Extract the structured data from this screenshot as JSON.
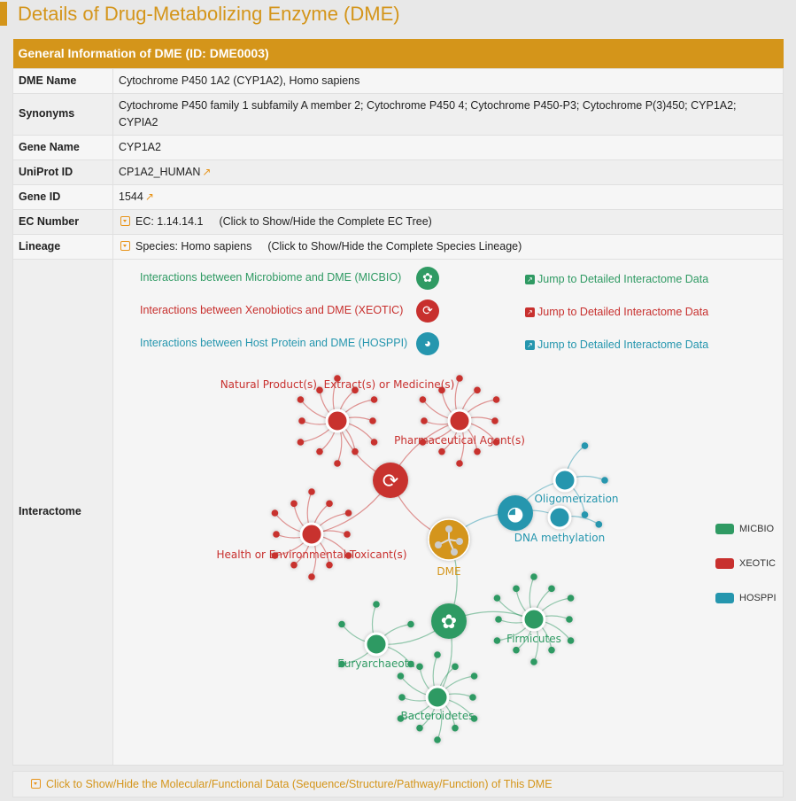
{
  "page_title": "Details of Drug-Metabolizing Enzyme (DME)",
  "table": {
    "header": "General Information of DME (ID: DME0003)",
    "rows": {
      "dme_name": {
        "label": "DME Name",
        "value": "Cytochrome P450 1A2 (CYP1A2), Homo sapiens"
      },
      "synonyms": {
        "label": "Synonyms",
        "value": "Cytochrome P450 family 1 subfamily A member 2; Cytochrome P450 4; Cytochrome P450-P3; Cytochrome P(3)450; CYP1A2; CYPIA2"
      },
      "gene_name": {
        "label": "Gene Name",
        "value": "CYP1A2"
      },
      "uniprot": {
        "label": "UniProt ID",
        "value": "CP1A2_HUMAN",
        "icon": "external-link-icon"
      },
      "gene_id": {
        "label": "Gene ID",
        "value": "1544",
        "icon": "external-link-icon"
      },
      "ec": {
        "label": "EC Number",
        "value": "EC: 1.14.14.1",
        "toggle": "(Click to Show/Hide the Complete EC Tree)"
      },
      "lineage": {
        "label": "Lineage",
        "value": "Species: Homo sapiens",
        "toggle": "(Click to Show/Hide the Complete Species Lineage)"
      },
      "interactome": {
        "label": "Interactome"
      }
    }
  },
  "interactions": [
    {
      "text": "Interactions between Microbiome and DME (MICBIO)",
      "color": "#2f9a63",
      "icon": "bacteria-icon",
      "jump": "Jump to Detailed Interactome Data"
    },
    {
      "text": "Interactions between Xenobiotics and DME (XEOTIC)",
      "color": "#c8302e",
      "icon": "refresh-icon",
      "jump": "Jump to Detailed Interactome Data"
    },
    {
      "text": "Interactions between Host Protein and DME (HOSPPI)",
      "color": "#2596ae",
      "icon": "protein-icon",
      "jump": "Jump to Detailed Interactome Data"
    }
  ],
  "graph": {
    "center": {
      "label": "DME",
      "color": "#d4951a",
      "icon": "molecule-icon"
    },
    "nodes": {
      "natural": "Natural Product(s), Extract(s) or Medicine(s)",
      "pharma": "Pharmaceutical Agent(s)",
      "health": "Health or Environmental Toxicant(s)",
      "oligo": "Oligomerization",
      "dna": "DNA methylation",
      "firmicutes": "Firmicutes",
      "eury": "Euryarchaeota",
      "bacter": "Bacteroidetes"
    },
    "legend": [
      {
        "label": "MICBIO",
        "color": "#2f9a63"
      },
      {
        "label": "XEOTIC",
        "color": "#c8302e"
      },
      {
        "label": "HOSPPI",
        "color": "#2596ae"
      }
    ]
  },
  "footer": "Click to Show/Hide the Molecular/Functional Data (Sequence/Structure/Pathway/Function) of This DME"
}
